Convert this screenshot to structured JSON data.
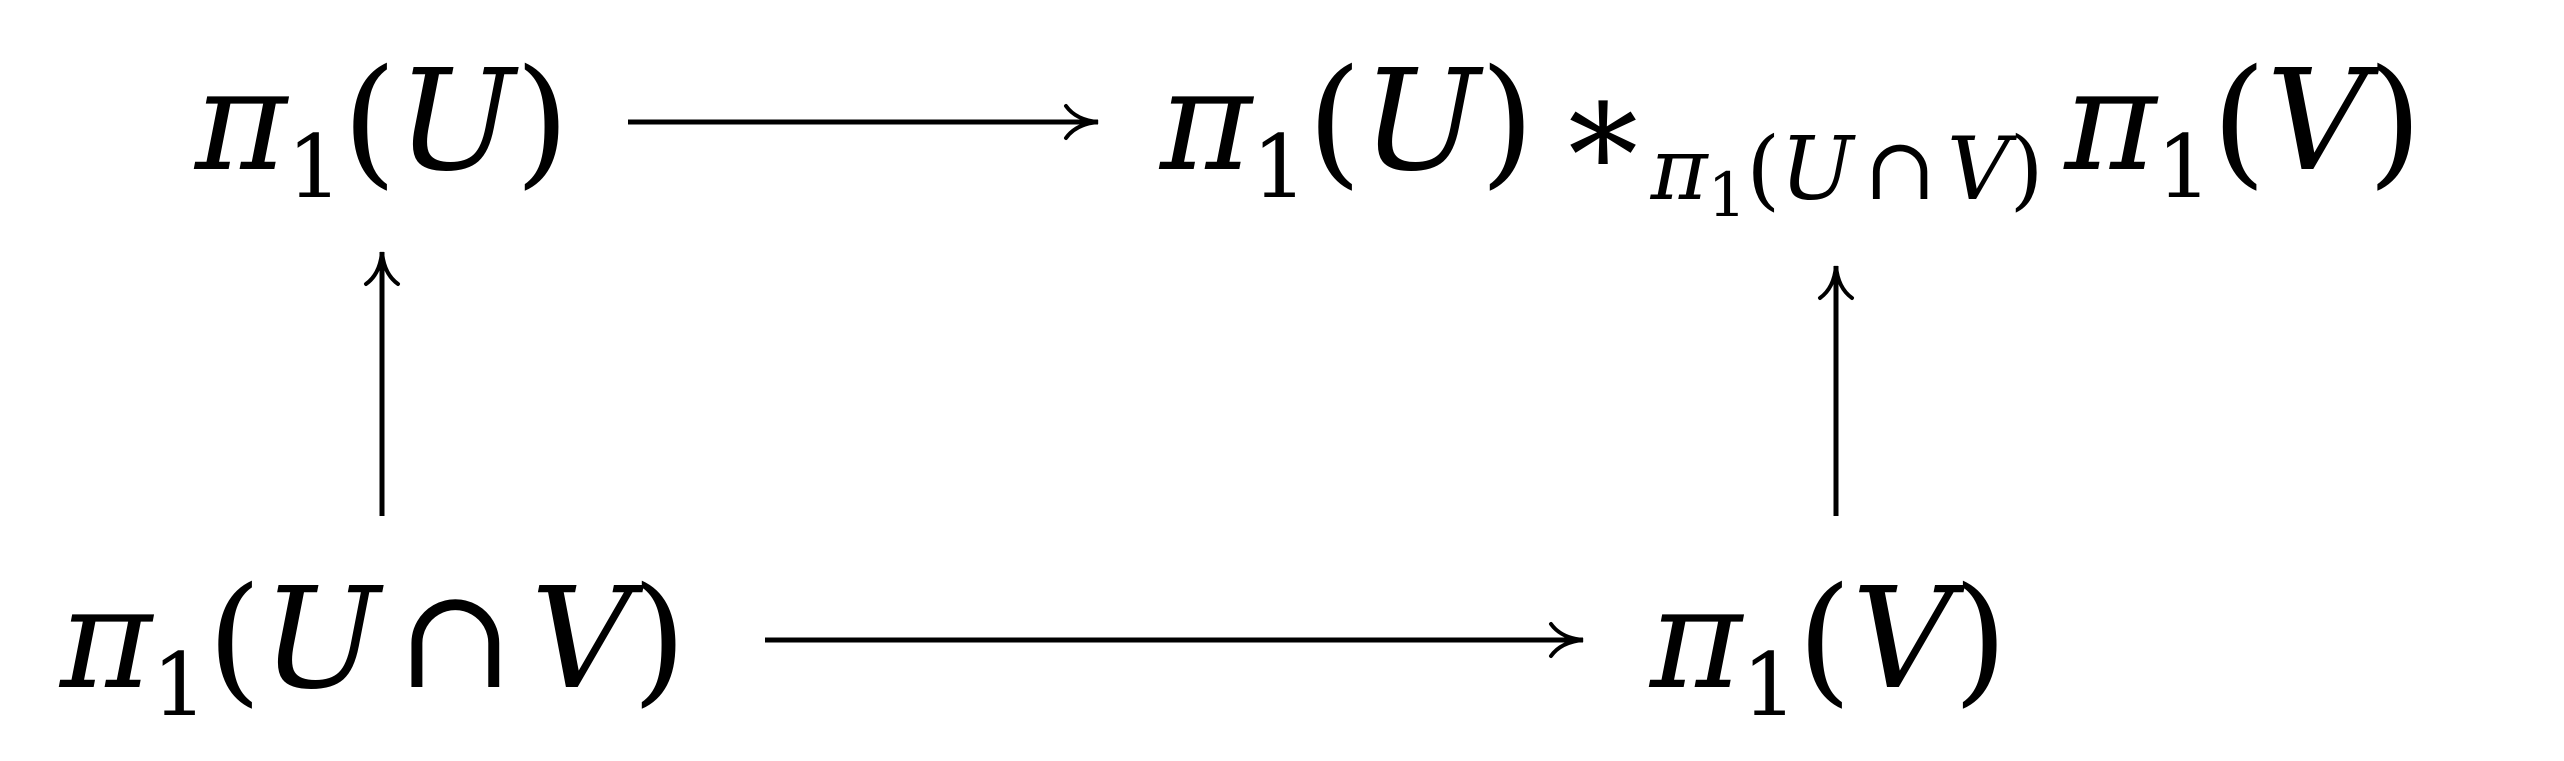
{
  "diagram": {
    "nodes": {
      "top_left": {
        "symbol": "π",
        "subscript": "1",
        "open": "(",
        "arg": "U",
        "close": ")"
      },
      "top_right": {
        "left": {
          "symbol": "π",
          "subscript": "1",
          "open": "(",
          "arg": "U",
          "close": ")"
        },
        "star": "∗",
        "amalgam": {
          "symbol": "π",
          "subscript": "1",
          "open": "(",
          "arg_a": "U",
          "cap": "∩",
          "arg_b": "V",
          "close": ")"
        },
        "right": {
          "symbol": "π",
          "subscript": "1",
          "open": "(",
          "arg": "V",
          "close": ")"
        }
      },
      "bottom_left": {
        "symbol": "π",
        "subscript": "1",
        "open": "(",
        "arg_a": "U",
        "cap": "∩",
        "arg_b": "V",
        "close": ")"
      },
      "bottom_right": {
        "symbol": "π",
        "subscript": "1",
        "open": "(",
        "arg": "V",
        "close": ")"
      }
    },
    "arrows": [
      {
        "from": "top_left",
        "to": "top_right"
      },
      {
        "from": "bottom_left",
        "to": "top_left"
      },
      {
        "from": "bottom_left",
        "to": "bottom_right"
      },
      {
        "from": "bottom_right",
        "to": "top_right"
      }
    ],
    "colors": {
      "ink": "#000000",
      "background": "#ffffff"
    }
  }
}
